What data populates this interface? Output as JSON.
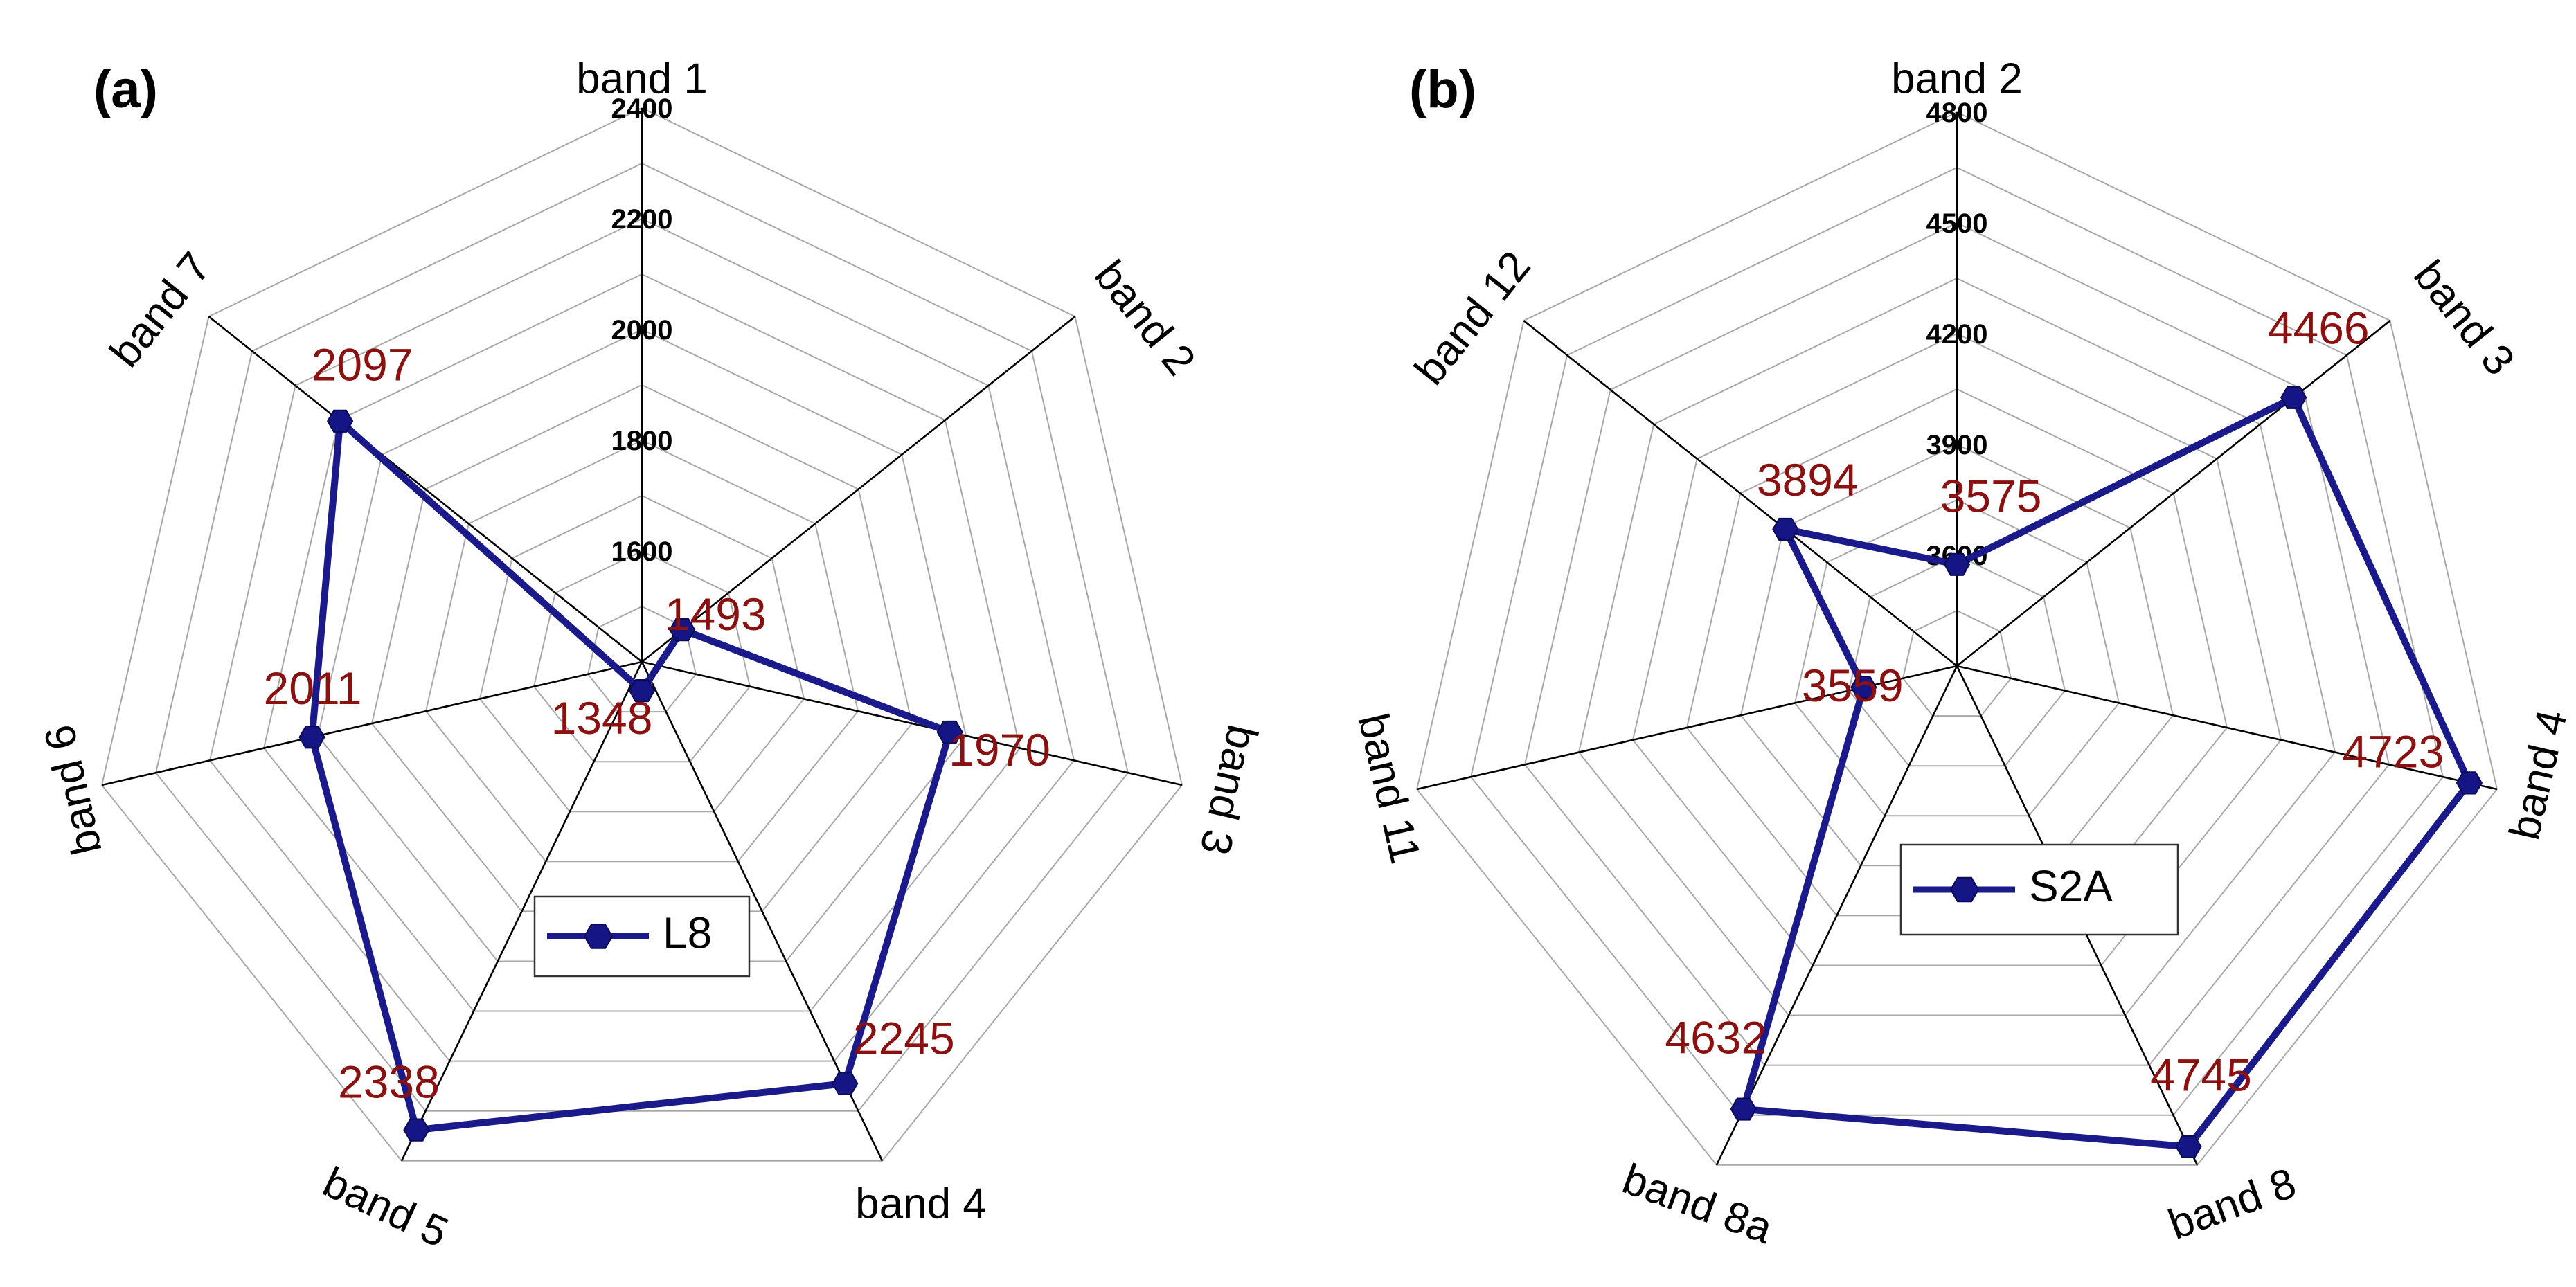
{
  "chart_data": [
    {
      "type": "radar",
      "panel_label": "(a)",
      "categories": [
        "band 1",
        "band 2",
        "band 3",
        "band 4",
        "band 5",
        "band 6",
        "band 7"
      ],
      "radial_ticks": [
        1600,
        1800,
        2000,
        2200,
        2400
      ],
      "radial_tick_labels": [
        "1600",
        "1800",
        "2000",
        "2200",
        "2400"
      ],
      "rlim": [
        1400,
        2400
      ],
      "series": [
        {
          "name": "L8",
          "values": [
            1348,
            1493,
            1970,
            2245,
            2338,
            2011,
            2097
          ]
        }
      ],
      "data_labels": [
        "1348",
        "1493",
        "1970",
        "2245",
        "2338",
        "2011",
        "2097"
      ],
      "legend": "L8",
      "colors": {
        "line": "#1a1a8a",
        "label": "#8b1010",
        "grid": "#a8a8a8"
      }
    },
    {
      "type": "radar",
      "panel_label": "(b)",
      "categories": [
        "band 2",
        "band 3",
        "band 4",
        "band 8",
        "band 8a",
        "band 11",
        "band 12"
      ],
      "radial_ticks": [
        3600,
        3900,
        4200,
        4500,
        4800
      ],
      "radial_tick_labels": [
        "3600",
        "3900",
        "4200",
        "4500",
        "4800"
      ],
      "rlim": [
        3300,
        4800
      ],
      "series": [
        {
          "name": "S2A",
          "values": [
            3575,
            4466,
            4723,
            4745,
            4632,
            3559,
            3894
          ]
        }
      ],
      "data_labels": [
        "3575",
        "4466",
        "4723",
        "4745",
        "4632",
        "3559",
        "3894"
      ],
      "legend": "S2A",
      "colors": {
        "line": "#1a1a8a",
        "label": "#8b1010",
        "grid": "#a8a8a8"
      }
    }
  ]
}
